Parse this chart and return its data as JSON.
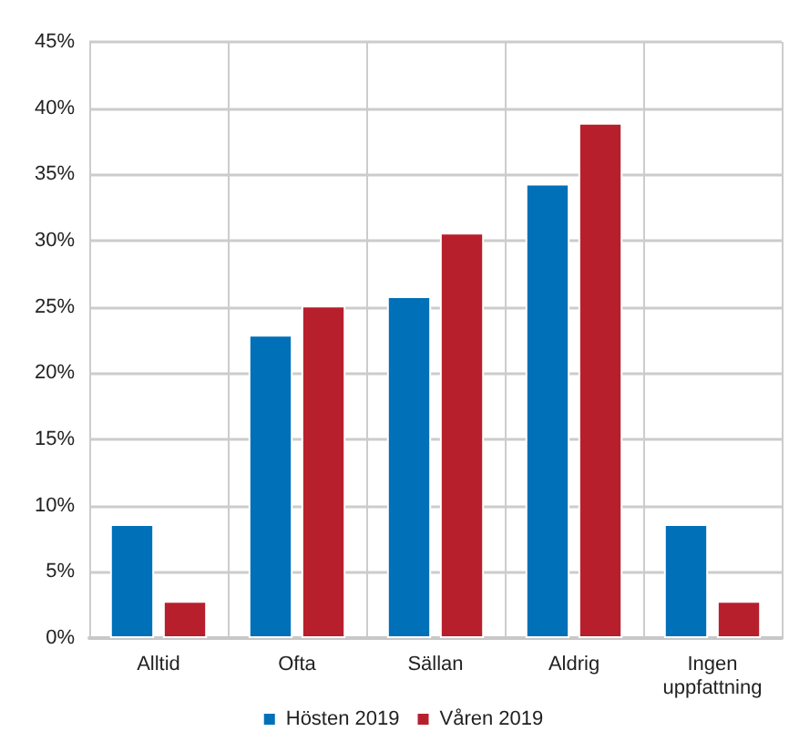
{
  "chart_data": {
    "type": "bar",
    "categories": [
      "Alltid",
      "Ofta",
      "Sällan",
      "Aldrig",
      "Ingen\nuppfattning"
    ],
    "series": [
      {
        "name": "Hösten 2019",
        "color": "#0070b8",
        "values": [
          8.6,
          22.9,
          25.8,
          34.3,
          8.6
        ]
      },
      {
        "name": "Våren 2019",
        "color": "#b81f2d",
        "values": [
          2.8,
          25.1,
          30.6,
          38.9,
          2.8
        ]
      }
    ],
    "ylim": [
      0,
      45
    ],
    "yticks": [
      {
        "value": 0,
        "label": "0%"
      },
      {
        "value": 5,
        "label": "5%"
      },
      {
        "value": 10,
        "label": "10%"
      },
      {
        "value": 15,
        "label": "15%"
      },
      {
        "value": 20,
        "label": "20%"
      },
      {
        "value": 25,
        "label": "25%"
      },
      {
        "value": 30,
        "label": "30%"
      },
      {
        "value": 35,
        "label": "35%"
      },
      {
        "value": 40,
        "label": "40%"
      },
      {
        "value": 45,
        "label": "45%"
      }
    ],
    "grid": true,
    "legend": "bottom"
  }
}
